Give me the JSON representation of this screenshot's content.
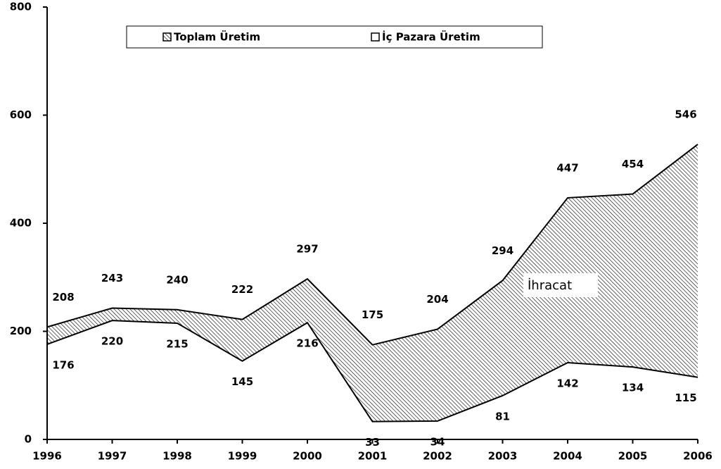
{
  "chart_data": {
    "type": "area",
    "x": [
      1996,
      1997,
      1998,
      1999,
      2000,
      2001,
      2002,
      2003,
      2004,
      2005,
      2006
    ],
    "xlim": [
      1996,
      2006
    ],
    "xticks": [
      1996,
      1997,
      1998,
      1999,
      2000,
      2001,
      2002,
      2003,
      2004,
      2005,
      2006
    ],
    "ylim": [
      0,
      800
    ],
    "yticks": [
      0,
      200,
      400,
      600,
      800
    ],
    "grid": false,
    "series": [
      {
        "name": "Toplam Üretim",
        "color": "#000000",
        "fill": "hatch",
        "values": [
          208,
          243,
          240,
          222,
          297,
          175,
          204,
          294,
          447,
          454,
          546
        ]
      },
      {
        "name": "İç Pazara Üretim",
        "color": "#000000",
        "fill": "#ffffff",
        "values": [
          176,
          220,
          215,
          145,
          216,
          33,
          34,
          81,
          142,
          134,
          115
        ]
      }
    ],
    "annotation": "İhracat"
  }
}
